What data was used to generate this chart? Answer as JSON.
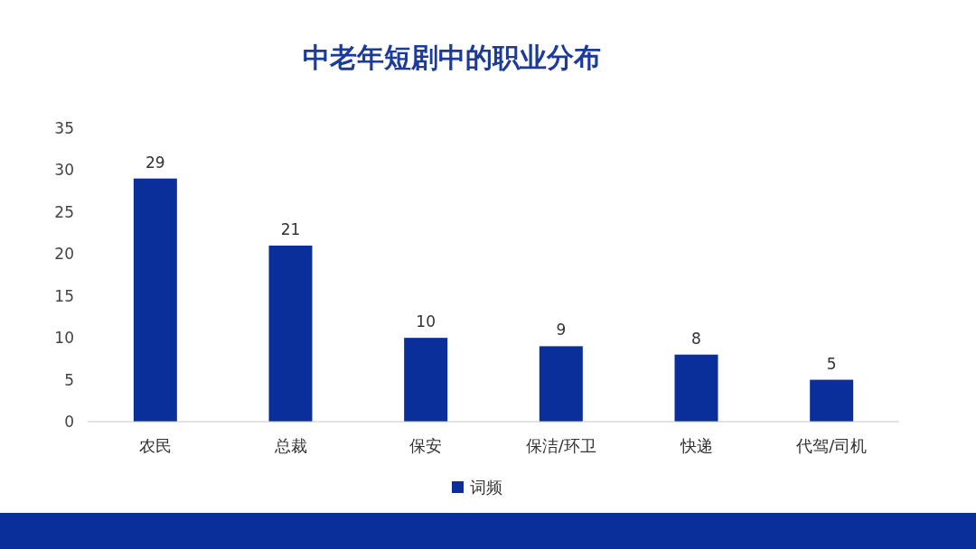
{
  "chart_data": {
    "type": "bar",
    "title": "中老年短剧中的职业分布",
    "categories": [
      "农民",
      "总裁",
      "保安",
      "保洁/环卫",
      "快递",
      "代驾/司机"
    ],
    "series": [
      {
        "name": "词频",
        "color": "#0a2f9a",
        "values": [
          29,
          21,
          10,
          9,
          8,
          5
        ]
      }
    ],
    "ylim": [
      0,
      35
    ],
    "yticks": [
      0,
      5,
      10,
      15,
      20,
      25,
      30,
      35
    ],
    "grid": false,
    "legend": "bottom",
    "data_labels": true
  }
}
